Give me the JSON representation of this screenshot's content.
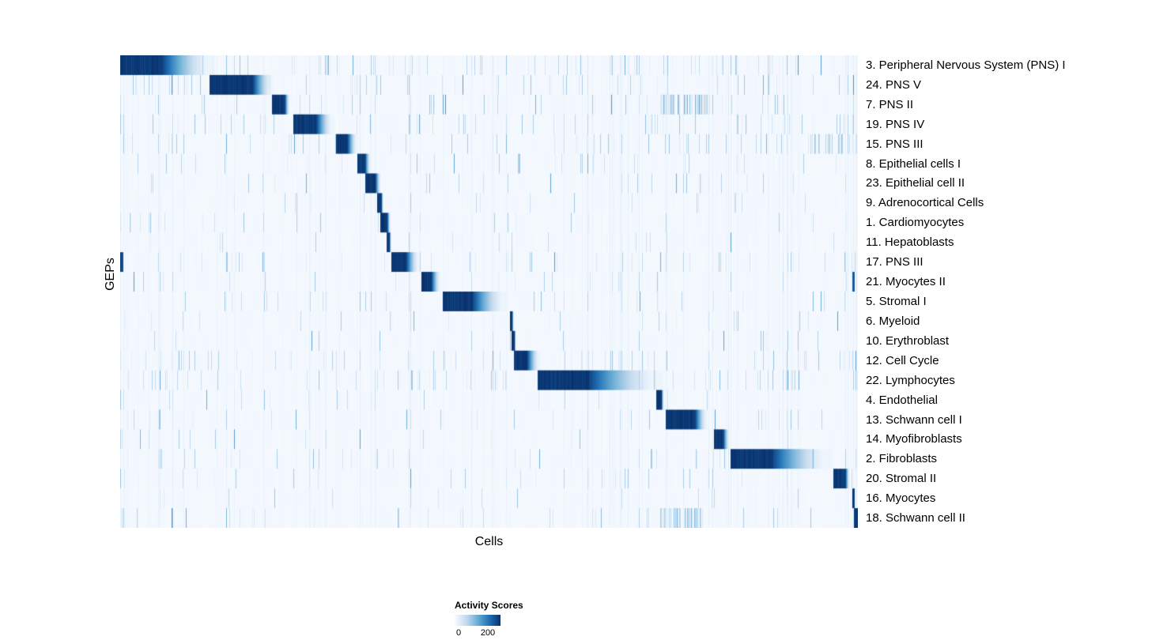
{
  "chart_data": {
    "type": "heatmap",
    "title": "",
    "xlabel": "Cells",
    "ylabel": "GEPs",
    "colorbar": {
      "label": "Activity Scores",
      "min": 0,
      "max": 200,
      "stops": [
        "#f7fbff",
        "#c6dbef",
        "#6baed6",
        "#2171b5",
        "#08306b"
      ]
    },
    "rows": [
      {
        "label": "3. Peripheral Nervous System (PNS) I",
        "start": 0.0,
        "core_end": 0.057,
        "fade_end": 0.128,
        "noise": 0.16
      },
      {
        "label": "24. PNS V",
        "start": 0.121,
        "core_end": 0.18,
        "fade_end": 0.208,
        "noise": 0.14
      },
      {
        "label": "7. PNS II",
        "start": 0.205,
        "core_end": 0.223,
        "fade_end": 0.23,
        "noise": 0.1,
        "extra": {
          "start": 0.73,
          "end": 0.8,
          "density": 0.45,
          "vmin": 0.12,
          "vmax": 0.45
        }
      },
      {
        "label": "19. PNS IV",
        "start": 0.234,
        "core_end": 0.266,
        "fade_end": 0.289,
        "noise": 0.16
      },
      {
        "label": "15. PNS III",
        "start": 0.292,
        "core_end": 0.308,
        "fade_end": 0.322,
        "noise": 0.12,
        "extra": {
          "start": 0.93,
          "end": 1.0,
          "density": 0.35,
          "vmin": 0.1,
          "vmax": 0.4
        }
      },
      {
        "label": "8. Epithelial cells I",
        "start": 0.321,
        "core_end": 0.332,
        "fade_end": 0.34,
        "noise": 0.05
      },
      {
        "label": "23. Epithelial cell II",
        "start": 0.332,
        "core_end": 0.346,
        "fade_end": 0.354,
        "noise": 0.06
      },
      {
        "label": "9. Adrenocortical Cells",
        "start": 0.348,
        "core_end": 0.354,
        "fade_end": 0.357,
        "noise": 0.04
      },
      {
        "label": "1. Cardiomyocytes",
        "start": 0.353,
        "core_end": 0.362,
        "fade_end": 0.367,
        "noise": 0.05
      },
      {
        "label": "11. Hepatoblasts",
        "start": 0.361,
        "core_end": 0.365,
        "fade_end": 0.368,
        "noise": 0.04
      },
      {
        "label": "17. PNS III",
        "start": 0.368,
        "core_end": 0.388,
        "fade_end": 0.406,
        "noise": 0.11,
        "extra": {
          "start": 0.0,
          "end": 0.004,
          "density": 1.0,
          "vmin": 0.7,
          "vmax": 0.95
        }
      },
      {
        "label": "21. Myocytes II",
        "start": 0.408,
        "core_end": 0.422,
        "fade_end": 0.435,
        "noise": 0.07,
        "extra": {
          "start": 0.993,
          "end": 0.996,
          "density": 1.0,
          "vmin": 0.7,
          "vmax": 0.9
        }
      },
      {
        "label": "5. Stromal I",
        "start": 0.437,
        "core_end": 0.478,
        "fade_end": 0.525,
        "noise": 0.09
      },
      {
        "label": "6. Myeloid",
        "start": 0.528,
        "core_end": 0.5315,
        "fade_end": 0.534,
        "noise": 0.04
      },
      {
        "label": "10. Erythroblast",
        "start": 0.5305,
        "core_end": 0.5345,
        "fade_end": 0.537,
        "noise": 0.05
      },
      {
        "label": "12. Cell Cycle",
        "start": 0.534,
        "core_end": 0.552,
        "fade_end": 0.57,
        "noise": 0.16
      },
      {
        "label": "22. Lymphocytes",
        "start": 0.566,
        "core_end": 0.636,
        "fade_end": 0.737,
        "noise": 0.18
      },
      {
        "label": "4. Endothelial",
        "start": 0.7266,
        "core_end": 0.734,
        "fade_end": 0.738,
        "noise": 0.05
      },
      {
        "label": "13. Schwann cell I",
        "start": 0.74,
        "core_end": 0.78,
        "fade_end": 0.797,
        "noise": 0.09
      },
      {
        "label": "14. Myofibroblasts",
        "start": 0.805,
        "core_end": 0.818,
        "fade_end": 0.827,
        "noise": 0.04
      },
      {
        "label": "2. Fibroblasts",
        "start": 0.828,
        "core_end": 0.885,
        "fade_end": 0.965,
        "noise": 0.13
      },
      {
        "label": "20. Stromal II",
        "start": 0.9678,
        "core_end": 0.9839,
        "fade_end": 0.99,
        "noise": 0.08
      },
      {
        "label": "16. Myocytes",
        "start": 0.9925,
        "core_end": 0.9957,
        "fade_end": 0.997,
        "noise": 0.05
      },
      {
        "label": "18. Schwann cell II",
        "start": 0.9957,
        "core_end": 1.0,
        "fade_end": 1.0,
        "noise": 0.08,
        "extra": {
          "start": 0.73,
          "end": 0.79,
          "density": 0.45,
          "vmin": 0.12,
          "vmax": 0.45
        }
      }
    ]
  }
}
